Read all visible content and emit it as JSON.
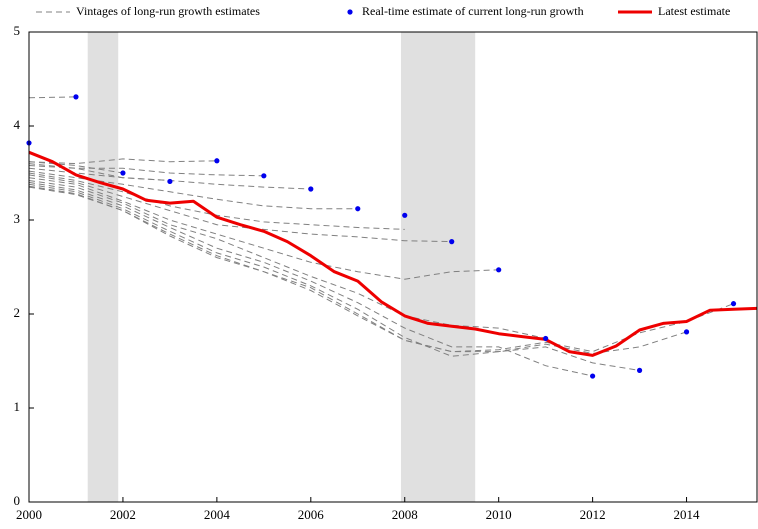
{
  "chart_data": {
    "type": "line",
    "xlim": [
      2000,
      2015.5
    ],
    "ylim": [
      0,
      5
    ],
    "xticks": [
      2000,
      2002,
      2004,
      2006,
      2008,
      2010,
      2012,
      2014
    ],
    "yticks": [
      0,
      1,
      2,
      3,
      4,
      5
    ],
    "shaded_regions": [
      [
        2001.25,
        2001.9
      ],
      [
        2007.92,
        2009.5
      ]
    ],
    "shade_color": "#e0e0e0",
    "vintages": {
      "name": "Vintages of long-run growth estimates",
      "color": "#808080",
      "x": [
        2000,
        2001,
        2002,
        2003,
        2004,
        2005,
        2006,
        2007,
        2008,
        2009,
        2010,
        2011,
        2012,
        2013,
        2014,
        2015
      ],
      "lines": [
        [
          4.3,
          4.31,
          null,
          null,
          null,
          null,
          null,
          null,
          null,
          null,
          null,
          null,
          null,
          null,
          null,
          null
        ],
        [
          3.62,
          3.58,
          3.5,
          null,
          null,
          null,
          null,
          null,
          null,
          null,
          null,
          null,
          null,
          null,
          null,
          null
        ],
        [
          3.6,
          3.55,
          3.45,
          3.42,
          null,
          null,
          null,
          null,
          null,
          null,
          null,
          null,
          null,
          null,
          null,
          null
        ],
        [
          3.62,
          3.6,
          3.65,
          3.62,
          3.63,
          null,
          null,
          null,
          null,
          null,
          null,
          null,
          null,
          null,
          null,
          null
        ],
        [
          3.58,
          3.55,
          3.55,
          3.5,
          3.48,
          3.47,
          null,
          null,
          null,
          null,
          null,
          null,
          null,
          null,
          null,
          null
        ],
        [
          3.55,
          3.5,
          3.45,
          3.42,
          3.38,
          3.35,
          3.33,
          null,
          null,
          null,
          null,
          null,
          null,
          null,
          null,
          null
        ],
        [
          3.52,
          3.45,
          3.38,
          3.3,
          3.22,
          3.15,
          3.12,
          3.12,
          null,
          null,
          null,
          null,
          null,
          null,
          null,
          null
        ],
        [
          3.5,
          3.42,
          3.3,
          3.15,
          3.05,
          2.98,
          2.95,
          2.92,
          2.9,
          null,
          null,
          null,
          null,
          null,
          null,
          null
        ],
        [
          3.48,
          3.4,
          3.25,
          3.1,
          2.95,
          2.9,
          2.85,
          2.82,
          2.78,
          2.77,
          null,
          null,
          null,
          null,
          null,
          null
        ],
        [
          3.45,
          3.38,
          3.2,
          3.0,
          2.85,
          2.7,
          2.55,
          2.45,
          2.37,
          2.45,
          2.47,
          null,
          null,
          null,
          null,
          null
        ],
        [
          3.42,
          3.35,
          3.18,
          2.95,
          2.8,
          2.6,
          2.4,
          2.22,
          1.98,
          1.88,
          1.85,
          1.74,
          null,
          null,
          null,
          null
        ],
        [
          3.4,
          3.32,
          3.15,
          2.92,
          2.7,
          2.55,
          2.35,
          2.12,
          1.85,
          1.65,
          1.65,
          1.45,
          1.34,
          null,
          null,
          null
        ],
        [
          3.38,
          3.3,
          3.12,
          2.88,
          2.65,
          2.5,
          2.3,
          2.05,
          1.75,
          1.55,
          1.6,
          1.65,
          1.48,
          1.4,
          null,
          null
        ],
        [
          3.36,
          3.28,
          3.1,
          2.85,
          2.62,
          2.45,
          2.28,
          2.0,
          1.72,
          1.6,
          1.6,
          1.68,
          1.58,
          1.65,
          1.81,
          null
        ],
        [
          3.35,
          3.27,
          3.1,
          2.83,
          2.6,
          2.45,
          2.25,
          1.98,
          1.72,
          1.6,
          1.62,
          1.7,
          1.6,
          1.8,
          1.92,
          2.11
        ]
      ]
    },
    "series": [
      {
        "name": "Real-time estimate of current long-run growth",
        "color": "#0000ee",
        "kind": "scatter",
        "x": [
          2000,
          2001,
          2002,
          2003,
          2004,
          2005,
          2006,
          2007,
          2008,
          2009,
          2010,
          2011,
          2012,
          2013,
          2014,
          2015
        ],
        "values": [
          3.82,
          4.31,
          3.5,
          3.41,
          3.63,
          3.47,
          3.33,
          3.12,
          3.05,
          2.77,
          2.47,
          1.74,
          1.34,
          1.4,
          1.81,
          2.11
        ]
      },
      {
        "name": "Latest estimate",
        "color": "#ee0000",
        "kind": "line",
        "x": [
          2000,
          2000.5,
          2001,
          2001.5,
          2002,
          2002.5,
          2003,
          2003.5,
          2004,
          2004.5,
          2005,
          2005.5,
          2006,
          2006.5,
          2007,
          2007.5,
          2008,
          2008.5,
          2009,
          2009.5,
          2010,
          2010.5,
          2011,
          2011.5,
          2012,
          2012.5,
          2013,
          2013.5,
          2014,
          2014.5,
          2015,
          2015.5
        ],
        "values": [
          3.72,
          3.62,
          3.48,
          3.4,
          3.33,
          3.21,
          3.18,
          3.2,
          3.03,
          2.95,
          2.88,
          2.77,
          2.62,
          2.45,
          2.35,
          2.13,
          1.98,
          1.9,
          1.87,
          1.84,
          1.79,
          1.76,
          1.73,
          1.6,
          1.56,
          1.66,
          1.83,
          1.9,
          1.92,
          2.04,
          2.05,
          2.06
        ]
      }
    ]
  }
}
